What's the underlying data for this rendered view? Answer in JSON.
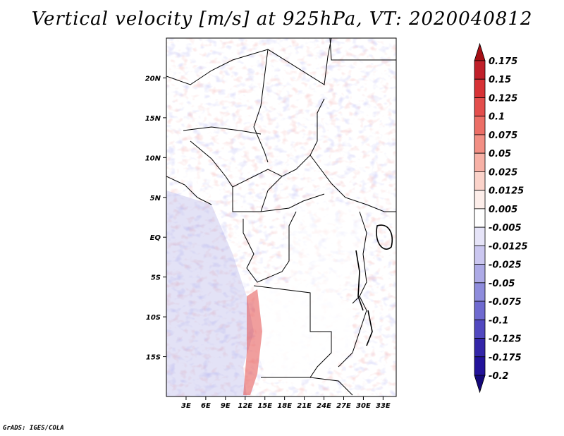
{
  "chart_data": {
    "type": "heatmap",
    "title": "Vertical velocity [m/s] at 925hPa, VT: 2020040812",
    "variable": "Vertical velocity",
    "units": "m/s",
    "level": "925hPa",
    "valid_time": "2020040812",
    "xlim": [
      0,
      35
    ],
    "ylim": [
      -20,
      25
    ],
    "x_ticks": [
      {
        "value": 3,
        "label": "3E"
      },
      {
        "value": 6,
        "label": "6E"
      },
      {
        "value": 9,
        "label": "9E"
      },
      {
        "value": 12,
        "label": "12E"
      },
      {
        "value": 15,
        "label": "15E"
      },
      {
        "value": 18,
        "label": "18E"
      },
      {
        "value": 21,
        "label": "21E"
      },
      {
        "value": 24,
        "label": "24E"
      },
      {
        "value": 27,
        "label": "27E"
      },
      {
        "value": 30,
        "label": "30E"
      },
      {
        "value": 33,
        "label": "33E"
      }
    ],
    "y_ticks": [
      {
        "value": 20,
        "label": "20N"
      },
      {
        "value": 15,
        "label": "15N"
      },
      {
        "value": 10,
        "label": "10N"
      },
      {
        "value": 5,
        "label": "5N"
      },
      {
        "value": 0,
        "label": "EQ"
      },
      {
        "value": -5,
        "label": "5S"
      },
      {
        "value": -10,
        "label": "10S"
      },
      {
        "value": -15,
        "label": "15S"
      }
    ],
    "colorbar": {
      "labels": [
        "0.175",
        "0.15",
        "0.125",
        "0.1",
        "0.075",
        "0.05",
        "0.025",
        "0.0125",
        "0.005",
        "-0.005",
        "-0.0125",
        "-0.025",
        "-0.05",
        "-0.075",
        "-0.1",
        "-0.125",
        "-0.175",
        "-0.2"
      ],
      "colors": [
        "#a50f15",
        "#c0202a",
        "#d73236",
        "#e34e4c",
        "#ec6e66",
        "#f28f84",
        "#f7b1a6",
        "#fbd3ca",
        "#fdeeea",
        "#ffffff",
        "#e6e4f8",
        "#cbc7f0",
        "#adaae6",
        "#8e8cdc",
        "#6f6ad0",
        "#5148c0",
        "#3325a8",
        "#22129a",
        "#14087a"
      ]
    }
  },
  "footer": "GrADS: IGES/COLA"
}
